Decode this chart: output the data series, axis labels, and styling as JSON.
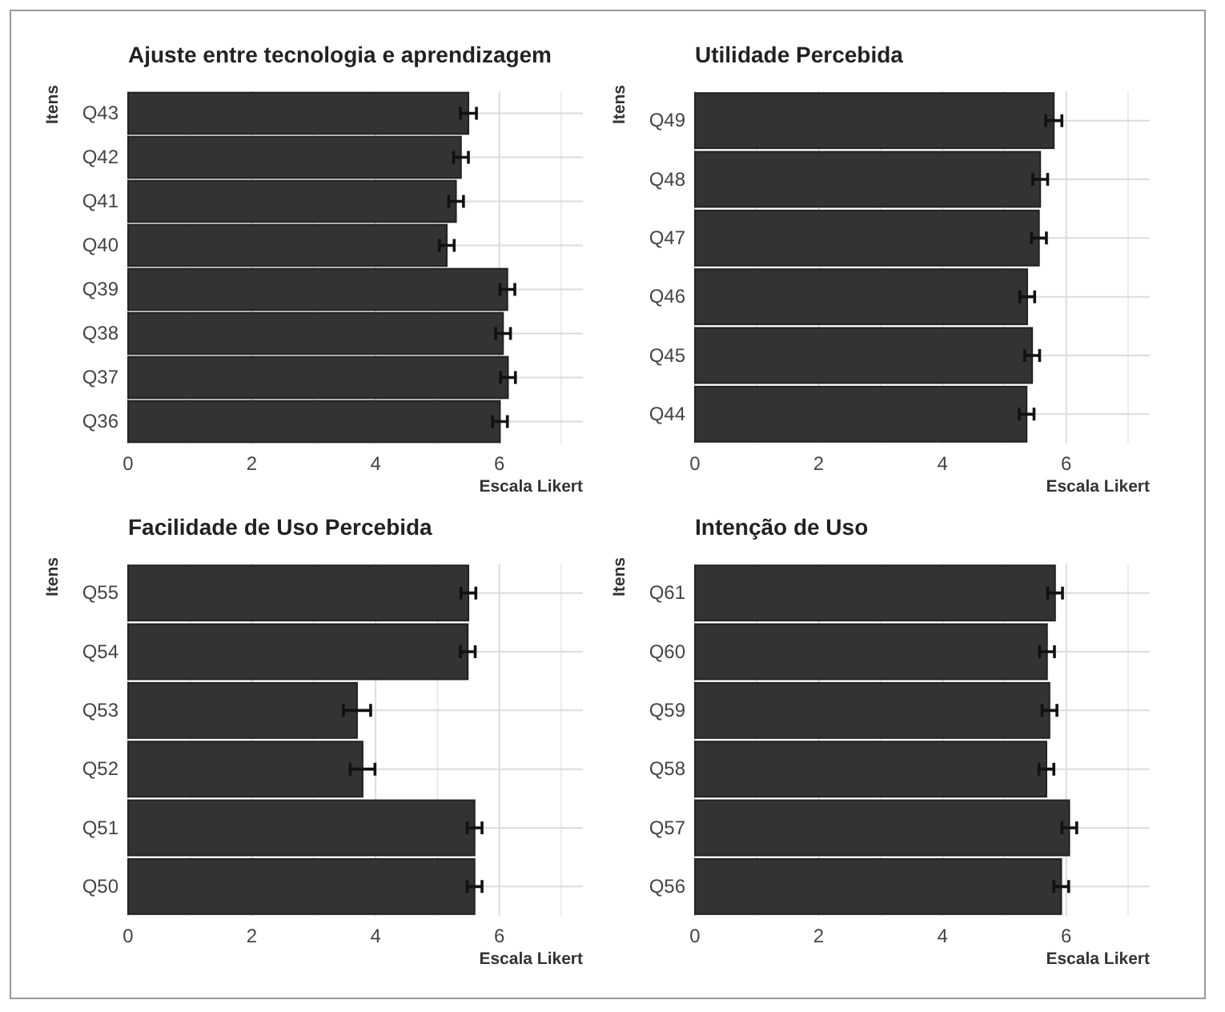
{
  "chart_data": [
    {
      "type": "bar",
      "orientation": "horizontal",
      "title": "Ajuste entre tecnologia e  aprendizagem",
      "xlabel": "Escala Likert",
      "ylabel": "Itens",
      "categories": [
        "Q43",
        "Q42",
        "Q41",
        "Q40",
        "Q39",
        "Q38",
        "Q37",
        "Q36"
      ],
      "values": [
        5.5,
        5.38,
        5.3,
        5.15,
        6.13,
        6.06,
        6.14,
        6.01
      ],
      "errors": [
        0.13,
        0.12,
        0.12,
        0.12,
        0.12,
        0.12,
        0.12,
        0.12
      ],
      "color": "#333333",
      "xlim": [
        0,
        7.35
      ],
      "xticks": [
        0,
        {
          "value": 1,
          "label": null
        },
        2,
        {
          "value": 3,
          "label": null
        },
        4,
        {
          "value": 5,
          "label": null
        },
        6,
        {
          "value": 7,
          "label": null
        }
      ],
      "grid": true
    },
    {
      "type": "bar",
      "orientation": "horizontal",
      "title": "Utilidade Percebida",
      "xlabel": "Escala Likert",
      "ylabel": "Itens",
      "categories": [
        "Q49",
        "Q48",
        "Q47",
        "Q46",
        "Q45",
        "Q44"
      ],
      "values": [
        5.8,
        5.58,
        5.56,
        5.37,
        5.45,
        5.36
      ],
      "errors": [
        0.13,
        0.12,
        0.12,
        0.12,
        0.12,
        0.12
      ],
      "color": "#333333",
      "xlim": [
        0,
        7.35
      ],
      "xticks": [
        0,
        {
          "value": 1,
          "label": null
        },
        2,
        {
          "value": 3,
          "label": null
        },
        4,
        {
          "value": 5,
          "label": null
        },
        6,
        {
          "value": 7,
          "label": null
        }
      ],
      "grid": true
    },
    {
      "type": "bar",
      "orientation": "horizontal",
      "title": "Facilidade de Uso Percebida",
      "xlabel": "Escala Likert",
      "ylabel": "Itens",
      "categories": [
        "Q55",
        "Q54",
        "Q53",
        "Q52",
        "Q51",
        "Q50"
      ],
      "values": [
        5.5,
        5.49,
        3.7,
        3.79,
        5.6,
        5.6
      ],
      "errors": [
        0.12,
        0.12,
        0.22,
        0.2,
        0.12,
        0.12
      ],
      "color": "#333333",
      "xlim": [
        0,
        7.35
      ],
      "xticks": [
        0,
        {
          "value": 1,
          "label": null
        },
        2,
        {
          "value": 3,
          "label": null
        },
        4,
        {
          "value": 5,
          "label": null
        },
        6,
        {
          "value": 7,
          "label": null
        }
      ],
      "grid": true
    },
    {
      "type": "bar",
      "orientation": "horizontal",
      "title": "Intenção de Uso",
      "xlabel": "Escala Likert",
      "ylabel": "Itens",
      "categories": [
        "Q61",
        "Q60",
        "Q59",
        "Q58",
        "Q57",
        "Q56"
      ],
      "values": [
        5.82,
        5.69,
        5.73,
        5.68,
        6.05,
        5.92
      ],
      "errors": [
        0.12,
        0.12,
        0.12,
        0.12,
        0.12,
        0.12
      ],
      "color": "#333333",
      "xlim": [
        0,
        7.35
      ],
      "xticks": [
        0,
        {
          "value": 1,
          "label": null
        },
        2,
        {
          "value": 3,
          "label": null
        },
        4,
        {
          "value": 5,
          "label": null
        },
        6,
        {
          "value": 7,
          "label": null
        }
      ],
      "grid": true
    }
  ]
}
